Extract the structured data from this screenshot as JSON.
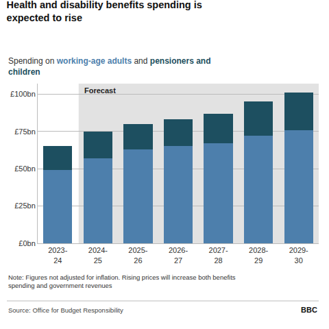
{
  "chart_data": {
    "type": "bar",
    "stacked": true,
    "title": "Health and disability benefits spending is\nexpected to rise",
    "subtitle": "Spending on working-age adults and pensioners and\nchildren",
    "categories": [
      "2023-\n24",
      "2024-\n25",
      "2025-\n26",
      "2026-\n27",
      "2027-\n28",
      "2028-\n29",
      "2029-\n30"
    ],
    "series": [
      {
        "name": "working-age adults",
        "color": "#4d7fac",
        "values": [
          49,
          57,
          63,
          65,
          67,
          72,
          76
        ]
      },
      {
        "name": "pensioners and children",
        "color": "#1d4f60",
        "values": [
          16,
          18,
          17,
          18,
          20,
          23,
          25
        ]
      }
    ],
    "ylim": [
      0,
      107
    ],
    "yticks": [
      {
        "value": 0,
        "label": "£0bn"
      },
      {
        "value": 25,
        "label": "£25bn"
      },
      {
        "value": 50,
        "label": "£50bn"
      },
      {
        "value": 75,
        "label": "£75bn"
      },
      {
        "value": 100,
        "label": "£100bn"
      }
    ],
    "grid": true,
    "annotations": [
      {
        "text": "Forecast",
        "x": "2024-\n25",
        "color": "#e2e2e2"
      }
    ],
    "note": "Note: Figures not adjusted for inflation. Rising prices will increase both benefits\nspending and government revenues",
    "source": "Source: Office for Budget Responsibility",
    "credit": "BBC"
  }
}
